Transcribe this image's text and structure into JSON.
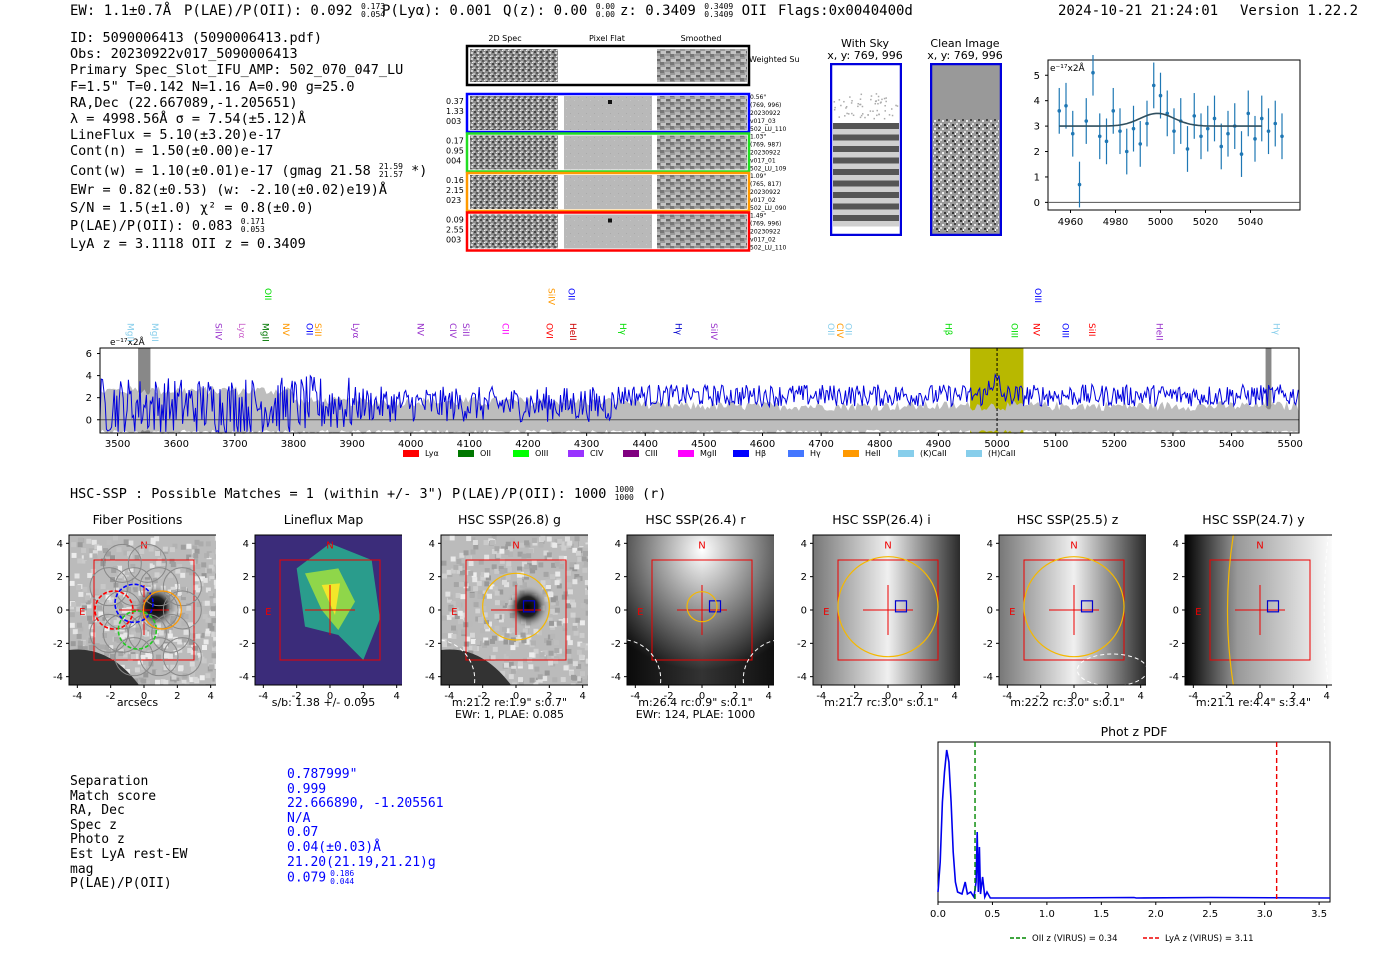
{
  "header": {
    "ew": "EW: 1.1±0.7Å",
    "plae_label": "P(LAE)/P(OII): 0.092",
    "plae_hi": "0.173",
    "plae_lo": "0.054",
    "plya": "P(Lyα): 0.001",
    "qz_label": "Q(z): 0.00",
    "qz_hi": "0.00",
    "qz_lo": "0.00",
    "z_label": "z: 0.3409",
    "z_hi": "0.3409",
    "z_lo": "0.3409",
    "z_line": "OII",
    "flags": "Flags:0x0040400d",
    "timestamp": "2024-10-21 21:24:01",
    "version": "Version 1.22.2"
  },
  "info": {
    "id": "ID: 5090006413 (5090006413.pdf)",
    "obs": "Obs: 20230922v017_5090006413",
    "primary": "Primary Spec_Slot_IFU_AMP: 502_070_047_LU",
    "fparams": "F=1.5\"  T=0.142  N=1.16  A=0.90  g=25.0",
    "radec": "RA,Dec (22.667089,-1.205651)",
    "lambda": "λ = 4998.56Å  σ = 7.54(±5.12)Å",
    "lineflux": "LineFlux = 5.10(±3.20)e-17",
    "contn": "Cont(n) = 1.50(±0.00)e-17",
    "contw": "Cont(w) = 1.10(±0.01)e-17 (gmag 21.58",
    "contw_hi": "21.59",
    "contw_lo": "21.57",
    "contw_tail": "*)",
    "ewr": "EWr = 0.82(±0.53)  (w: -2.10(±0.02)e19)Å",
    "sn": "S/N = 1.5(±1.0)  χ² = 0.8(±0.0)",
    "plae": "P(LAE)/P(OII): 0.083",
    "plae_hi": "0.171",
    "plae_lo": "0.053",
    "lyaz": "LyA z = 3.1118   OII z = 0.3409"
  },
  "stamps": {
    "col_headers": [
      "2D Spec",
      "Pixel Flat",
      "Smoothed"
    ],
    "weighted_sum": "Weighted Sum",
    "rows": [
      {
        "left": [
          "0.37",
          "1.33",
          "003"
        ],
        "right": [
          "0.56\"",
          "(769, 996)",
          "20230922",
          "v017_03",
          "502_LU_110"
        ],
        "color": "#0000ff"
      },
      {
        "left": [
          "0.17",
          "0.95",
          "004"
        ],
        "right": [
          "1.03\"",
          "(769, 987)",
          "20230922",
          "v017_01",
          "502_LU_109"
        ],
        "color": "#22dd22"
      },
      {
        "left": [
          "0.16",
          "2.15",
          "023"
        ],
        "right": [
          "1.09\"",
          "(765, 817)",
          "20230922",
          "v017_02",
          "502_LU_090"
        ],
        "color": "#ff9900"
      },
      {
        "left": [
          "0.09",
          "2.55",
          "003"
        ],
        "right": [
          "1.49\"",
          "(769, 996)",
          "20230922",
          "v017_02",
          "502_LU_110"
        ],
        "color": "#ff0000"
      }
    ]
  },
  "sky": {
    "with_sky": "With Sky",
    "with_sky_xy": "x, y: 769, 996",
    "clean": "Clean Image",
    "clean_xy": "x, y: 769, 996"
  },
  "zoom_spectrum": {
    "ylabel": "e⁻¹⁷x2Å",
    "x": [
      4955,
      4958,
      4961,
      4964,
      4967,
      4970,
      4973,
      4976,
      4979,
      4982,
      4985,
      4988,
      4991,
      4994,
      4997,
      5000,
      5003,
      5006,
      5009,
      5012,
      5015,
      5018,
      5021,
      5024,
      5027,
      5030,
      5033,
      5036,
      5039,
      5042,
      5045,
      5048,
      5051,
      5054
    ],
    "y": [
      3.6,
      3.8,
      2.7,
      0.7,
      3.2,
      5.1,
      2.6,
      2.4,
      3.6,
      2.8,
      2.0,
      2.9,
      2.3,
      3.1,
      4.6,
      4.2,
      3.5,
      2.8,
      3.2,
      2.1,
      3.4,
      2.6,
      2.9,
      3.3,
      2.2,
      2.7,
      3.0,
      1.9,
      3.5,
      2.5,
      3.3,
      2.8,
      3.1,
      2.6
    ],
    "err": [
      0.9,
      0.9,
      0.9,
      0.9,
      0.9,
      0.9,
      0.9,
      0.9,
      0.9,
      0.9,
      0.9,
      0.9,
      0.9,
      0.9,
      0.9,
      0.9,
      0.9,
      0.9,
      0.9,
      0.9,
      0.9,
      0.9,
      0.9,
      0.9,
      0.9,
      0.9,
      0.9,
      0.9,
      0.9,
      0.9,
      0.9,
      0.9,
      0.9,
      0.9
    ],
    "fit_base": 3.0,
    "fit_peak": 0.5,
    "fit_center": 4998.56,
    "fit_sigma": 7.54,
    "xlim": [
      4950,
      5062
    ],
    "ylim": [
      -0.3,
      5.6
    ],
    "xticks": [
      "4960",
      "4980",
      "5000",
      "5020",
      "5040"
    ],
    "yticks": [
      "0",
      "1",
      "2",
      "3",
      "4",
      "5"
    ]
  },
  "full_spectrum": {
    "ylabel": "e⁻¹⁷x2Å",
    "xlim": [
      3470,
      5515
    ],
    "ylim": [
      -1.2,
      6.5
    ],
    "xticks": [
      "3500",
      "3600",
      "3700",
      "3800",
      "3900",
      "4000",
      "4100",
      "4200",
      "4300",
      "4400",
      "4500",
      "4600",
      "4700",
      "4800",
      "4900",
      "5000",
      "5100",
      "5200",
      "5300",
      "5400",
      "5500"
    ],
    "yticks": [
      "0",
      "2",
      "4",
      "6"
    ],
    "highlight": [
      4954,
      5045
    ],
    "marker": 5000,
    "gray_bands": [
      [
        3535,
        3556
      ],
      [
        5458,
        5468
      ]
    ],
    "lines": [
      {
        "name": "MgII",
        "wave": 3510,
        "color": "#87ceeb",
        "level": 1
      },
      {
        "name": "MgII",
        "wave": 3552,
        "color": "#87ceeb",
        "level": 1
      },
      {
        "name": "SiIV",
        "wave": 3660,
        "color": "#9933cc",
        "level": 1
      },
      {
        "name": "Lyα",
        "wave": 3700,
        "color": "#cc66cc",
        "level": 1
      },
      {
        "name": "MgII",
        "wave": 3740,
        "color": "#007700",
        "level": 1
      },
      {
        "name": "OII",
        "wave": 3745,
        "color": "#00dd00",
        "level": 2
      },
      {
        "name": "NV",
        "wave": 3775,
        "color": "#ff9900",
        "level": 1
      },
      {
        "name": "OII",
        "wave": 3815,
        "color": "#0000ff",
        "level": 1
      },
      {
        "name": "SiII",
        "wave": 3830,
        "color": "#ff9900",
        "level": 1
      },
      {
        "name": "Lyα",
        "wave": 3895,
        "color": "#9933cc",
        "level": 1
      },
      {
        "name": "NV",
        "wave": 4005,
        "color": "#9933cc",
        "level": 1
      },
      {
        "name": "CIV",
        "wave": 4060,
        "color": "#9933cc",
        "level": 1
      },
      {
        "name": "SiII",
        "wave": 4082,
        "color": "#9933cc",
        "level": 1
      },
      {
        "name": "CII",
        "wave": 4150,
        "color": "#ff00ff",
        "level": 1
      },
      {
        "name": "OVI",
        "wave": 4225,
        "color": "#ff0000",
        "level": 1
      },
      {
        "name": "SiIV",
        "wave": 4228,
        "color": "#ff9900",
        "level": 2
      },
      {
        "name": "OII",
        "wave": 4262,
        "color": "#0000ff",
        "level": 2
      },
      {
        "name": "HeII",
        "wave": 4265,
        "color": "#cc0000",
        "level": 1
      },
      {
        "name": "Hγ",
        "wave": 4350,
        "color": "#00dd00",
        "level": 1
      },
      {
        "name": "Hγ",
        "wave": 4445,
        "color": "#0000cc",
        "level": 1
      },
      {
        "name": "SiIV",
        "wave": 4505,
        "color": "#9933cc",
        "level": 1
      },
      {
        "name": "OII",
        "wave": 4705,
        "color": "#87ceeb",
        "level": 1
      },
      {
        "name": "CIV",
        "wave": 4720,
        "color": "#ff9900",
        "level": 1
      },
      {
        "name": "OII",
        "wave": 4735,
        "color": "#87ceeb",
        "level": 1
      },
      {
        "name": "Hβ",
        "wave": 4905,
        "color": "#00dd00",
        "level": 1
      },
      {
        "name": "OIII",
        "wave": 5018,
        "color": "#00dd00",
        "level": 1
      },
      {
        "name": "NV",
        "wave": 5055,
        "color": "#ff0000",
        "level": 1
      },
      {
        "name": "OIII",
        "wave": 5058,
        "color": "#0000ff",
        "level": 2
      },
      {
        "name": "OIII",
        "wave": 5105,
        "color": "#0000ff",
        "level": 1
      },
      {
        "name": "SiII",
        "wave": 5150,
        "color": "#ff0000",
        "level": 1
      },
      {
        "name": "HeII",
        "wave": 5265,
        "color": "#9933cc",
        "level": 1
      },
      {
        "name": "Hγ",
        "wave": 5465,
        "color": "#87ceeb",
        "level": 1
      }
    ],
    "legend": [
      {
        "name": "Lyα",
        "color": "#ff0000"
      },
      {
        "name": "OII",
        "color": "#007700"
      },
      {
        "name": "OIII",
        "color": "#00ff00"
      },
      {
        "name": "CIV",
        "color": "#9933ff"
      },
      {
        "name": "CIII",
        "color": "#800080"
      },
      {
        "name": "MgII",
        "color": "#ff00ff"
      },
      {
        "name": "Hβ",
        "color": "#0000ff"
      },
      {
        "name": "Hγ",
        "color": "#4477ff"
      },
      {
        "name": "HeII",
        "color": "#ff9900"
      },
      {
        "name": "(K)CaII",
        "color": "#87ceeb"
      },
      {
        "name": "(H)CaII",
        "color": "#87ceeb"
      }
    ]
  },
  "hsc_header": {
    "text": "HSC-SSP : Possible Matches = 1 (within +/- 3\")  P(LAE)/P(OII): 1000",
    "hi": "1000",
    "lo": "1000",
    "tail": "(r)"
  },
  "cutouts": [
    {
      "title": "Fiber Positions",
      "caption": [
        "arcsecs"
      ],
      "kind": "fiber"
    },
    {
      "title": "Lineflux Map",
      "caption": [
        "s/b: 1.38 +/- 0.095"
      ],
      "kind": "lineflux"
    },
    {
      "title": "HSC SSP(26.8) g",
      "caption": [
        "m:21.2  re:1.9\"  s:0.7\"",
        "EWr: 1, PLAE: 0.085"
      ],
      "kind": "g"
    },
    {
      "title": "HSC SSP(26.4) r",
      "caption": [
        "m:26.4  rc:0.9\"  s:0.1\"",
        "EWr: 124, PLAE: 1000"
      ],
      "kind": "r"
    },
    {
      "title": "HSC SSP(26.4) i",
      "caption": [
        "m:21.7  rc:3.0\"  s:0.1\""
      ],
      "kind": "i"
    },
    {
      "title": "HSC SSP(25.5) z",
      "caption": [
        "m:22.2  rc:3.0\"  s:0.1\""
      ],
      "kind": "z"
    },
    {
      "title": "HSC SSP(24.7) y",
      "caption": [
        "m:21.1  re:4.4\"  s:3.4\""
      ],
      "kind": "y"
    }
  ],
  "cutout_axis": {
    "ticks": [
      "-4",
      "-2",
      "0",
      "2",
      "4"
    ],
    "north": "N",
    "east": "E"
  },
  "match": {
    "labels": [
      "Separation",
      "Match score",
      "RA, Dec",
      "Spec z",
      "Photo z",
      "Est LyA rest-EW",
      "mag",
      "P(LAE)/P(OII)"
    ],
    "values": [
      "0.787999\"",
      "0.999",
      "22.666890, -1.205561",
      "N/A",
      "0.07",
      "0.04(±0.03)Å",
      "21.20(21.19,21.21)g",
      "0.079"
    ],
    "plae_hi": "0.186",
    "plae_lo": "0.044"
  },
  "photz": {
    "title": "Phot z PDF",
    "xlim": [
      0.0,
      3.6
    ],
    "xticks": [
      "0.0",
      "0.5",
      "1.0",
      "1.5",
      "2.0",
      "2.5",
      "3.0",
      "3.5"
    ],
    "oii_z": 0.34,
    "lya_z": 3.11,
    "legend_oii": "OII z (VIRUS) = 0.34",
    "legend_lya": "LyA z (VIRUS) = 3.11"
  }
}
